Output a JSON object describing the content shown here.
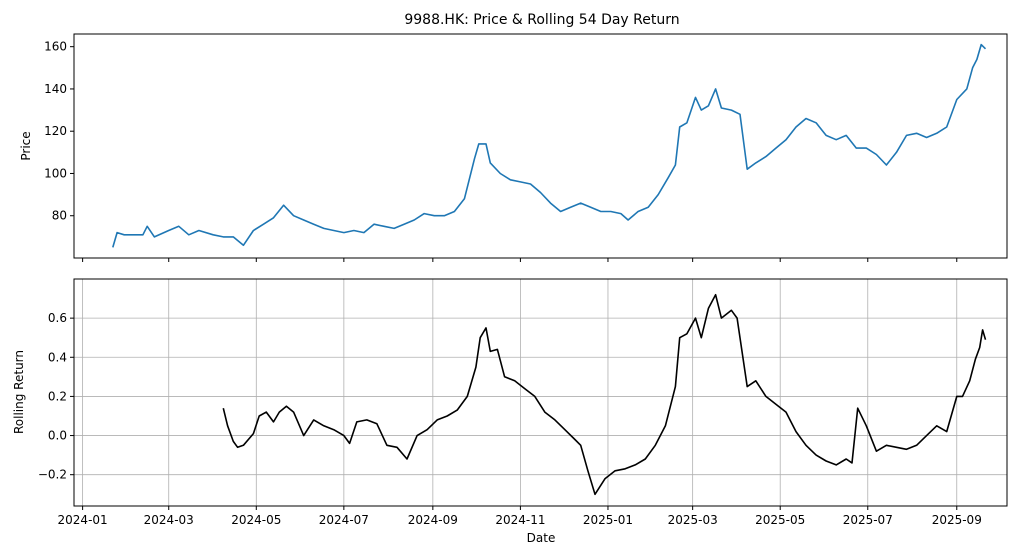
{
  "chart_data": [
    {
      "type": "line",
      "title": "9988.HK: Price & Rolling 54 Day Return",
      "xlabel": "",
      "ylabel": "Price",
      "ylim": [
        60,
        166
      ],
      "xlim": [
        "2023-12-26",
        "2025-10-06"
      ],
      "yticks": [
        80,
        100,
        120,
        140,
        160
      ],
      "grid": false,
      "series": [
        {
          "color": "#1f77b4",
          "points": [
            [
              "2024-01-22",
              65
            ],
            [
              "2024-01-25",
              72
            ],
            [
              "2024-01-30",
              71
            ],
            [
              "2024-02-05",
              71
            ],
            [
              "2024-02-12",
              71
            ],
            [
              "2024-02-15",
              75
            ],
            [
              "2024-02-20",
              70
            ],
            [
              "2024-03-01",
              73
            ],
            [
              "2024-03-08",
              75
            ],
            [
              "2024-03-15",
              71
            ],
            [
              "2024-03-22",
              73
            ],
            [
              "2024-04-01",
              71
            ],
            [
              "2024-04-08",
              70
            ],
            [
              "2024-04-15",
              70
            ],
            [
              "2024-04-22",
              66
            ],
            [
              "2024-04-29",
              73
            ],
            [
              "2024-05-06",
              76
            ],
            [
              "2024-05-13",
              79
            ],
            [
              "2024-05-20",
              85
            ],
            [
              "2024-05-27",
              80
            ],
            [
              "2024-06-03",
              78
            ],
            [
              "2024-06-10",
              76
            ],
            [
              "2024-06-17",
              74
            ],
            [
              "2024-06-24",
              73
            ],
            [
              "2024-07-01",
              72
            ],
            [
              "2024-07-08",
              73
            ],
            [
              "2024-07-15",
              72
            ],
            [
              "2024-07-22",
              76
            ],
            [
              "2024-07-29",
              75
            ],
            [
              "2024-08-05",
              74
            ],
            [
              "2024-08-12",
              76
            ],
            [
              "2024-08-19",
              78
            ],
            [
              "2024-08-26",
              81
            ],
            [
              "2024-09-02",
              80
            ],
            [
              "2024-09-09",
              80
            ],
            [
              "2024-09-16",
              82
            ],
            [
              "2024-09-23",
              88
            ],
            [
              "2024-09-30",
              107
            ],
            [
              "2024-10-03",
              114
            ],
            [
              "2024-10-08",
              114
            ],
            [
              "2024-10-11",
              105
            ],
            [
              "2024-10-18",
              100
            ],
            [
              "2024-10-25",
              97
            ],
            [
              "2024-11-01",
              96
            ],
            [
              "2024-11-08",
              95
            ],
            [
              "2024-11-15",
              91
            ],
            [
              "2024-11-22",
              86
            ],
            [
              "2024-11-29",
              82
            ],
            [
              "2024-12-06",
              84
            ],
            [
              "2024-12-13",
              86
            ],
            [
              "2024-12-20",
              84
            ],
            [
              "2024-12-27",
              82
            ],
            [
              "2025-01-03",
              82
            ],
            [
              "2025-01-10",
              81
            ],
            [
              "2025-01-15",
              78
            ],
            [
              "2025-01-22",
              82
            ],
            [
              "2025-01-29",
              84
            ],
            [
              "2025-02-05",
              90
            ],
            [
              "2025-02-12",
              98
            ],
            [
              "2025-02-17",
              104
            ],
            [
              "2025-02-20",
              122
            ],
            [
              "2025-02-25",
              124
            ],
            [
              "2025-03-03",
              136
            ],
            [
              "2025-03-07",
              130
            ],
            [
              "2025-03-12",
              132
            ],
            [
              "2025-03-17",
              140
            ],
            [
              "2025-03-21",
              131
            ],
            [
              "2025-03-28",
              130
            ],
            [
              "2025-04-03",
              128
            ],
            [
              "2025-04-08",
              102
            ],
            [
              "2025-04-14",
              105
            ],
            [
              "2025-04-21",
              108
            ],
            [
              "2025-04-28",
              112
            ],
            [
              "2025-05-05",
              116
            ],
            [
              "2025-05-12",
              122
            ],
            [
              "2025-05-19",
              126
            ],
            [
              "2025-05-26",
              124
            ],
            [
              "2025-06-02",
              118
            ],
            [
              "2025-06-09",
              116
            ],
            [
              "2025-06-16",
              118
            ],
            [
              "2025-06-23",
              112
            ],
            [
              "2025-06-30",
              112
            ],
            [
              "2025-07-07",
              109
            ],
            [
              "2025-07-14",
              104
            ],
            [
              "2025-07-21",
              110
            ],
            [
              "2025-07-28",
              118
            ],
            [
              "2025-08-04",
              119
            ],
            [
              "2025-08-11",
              117
            ],
            [
              "2025-08-18",
              119
            ],
            [
              "2025-08-25",
              122
            ],
            [
              "2025-09-01",
              135
            ],
            [
              "2025-09-08",
              140
            ],
            [
              "2025-09-12",
              150
            ],
            [
              "2025-09-15",
              154
            ],
            [
              "2025-09-18",
              161
            ],
            [
              "2025-09-21",
              159
            ]
          ]
        }
      ]
    },
    {
      "type": "line",
      "title": "",
      "xlabel": "Date",
      "ylabel": "Rolling Return",
      "ylim": [
        -0.36,
        0.8
      ],
      "xlim": [
        "2023-12-26",
        "2025-10-06"
      ],
      "yticks": [
        -0.2,
        0.0,
        0.2,
        0.4,
        0.6
      ],
      "ytick_labels": [
        "−0.2",
        "0.0",
        "0.2",
        "0.4",
        "0.6"
      ],
      "xtick_labels": [
        "2024-01",
        "2024-03",
        "2024-05",
        "2024-07",
        "2024-09",
        "2024-11",
        "2025-01",
        "2025-03",
        "2025-05",
        "2025-07",
        "2025-09"
      ],
      "grid": true,
      "series": [
        {
          "color": "#000000",
          "points": [
            [
              "2024-04-08",
              0.14
            ],
            [
              "2024-04-11",
              0.05
            ],
            [
              "2024-04-15",
              -0.03
            ],
            [
              "2024-04-18",
              -0.06
            ],
            [
              "2024-04-22",
              -0.05
            ],
            [
              "2024-04-29",
              0.01
            ],
            [
              "2024-05-03",
              0.1
            ],
            [
              "2024-05-08",
              0.12
            ],
            [
              "2024-05-13",
              0.07
            ],
            [
              "2024-05-17",
              0.12
            ],
            [
              "2024-05-22",
              0.15
            ],
            [
              "2024-05-27",
              0.12
            ],
            [
              "2024-06-03",
              0.0
            ],
            [
              "2024-06-10",
              0.08
            ],
            [
              "2024-06-17",
              0.05
            ],
            [
              "2024-06-24",
              0.03
            ],
            [
              "2024-07-01",
              0.0
            ],
            [
              "2024-07-05",
              -0.04
            ],
            [
              "2024-07-10",
              0.07
            ],
            [
              "2024-07-17",
              0.08
            ],
            [
              "2024-07-24",
              0.06
            ],
            [
              "2024-07-31",
              -0.05
            ],
            [
              "2024-08-07",
              -0.06
            ],
            [
              "2024-08-14",
              -0.12
            ],
            [
              "2024-08-21",
              0.0
            ],
            [
              "2024-08-28",
              0.03
            ],
            [
              "2024-09-04",
              0.08
            ],
            [
              "2024-09-11",
              0.1
            ],
            [
              "2024-09-18",
              0.13
            ],
            [
              "2024-09-25",
              0.2
            ],
            [
              "2024-10-01",
              0.35
            ],
            [
              "2024-10-04",
              0.5
            ],
            [
              "2024-10-08",
              0.55
            ],
            [
              "2024-10-11",
              0.43
            ],
            [
              "2024-10-16",
              0.44
            ],
            [
              "2024-10-21",
              0.3
            ],
            [
              "2024-10-28",
              0.28
            ],
            [
              "2024-11-04",
              0.24
            ],
            [
              "2024-11-11",
              0.2
            ],
            [
              "2024-11-18",
              0.12
            ],
            [
              "2024-11-25",
              0.08
            ],
            [
              "2024-12-02",
              0.03
            ],
            [
              "2024-12-09",
              -0.02
            ],
            [
              "2024-12-13",
              -0.05
            ],
            [
              "2024-12-18",
              -0.18
            ],
            [
              "2024-12-23",
              -0.3
            ],
            [
              "2024-12-30",
              -0.22
            ],
            [
              "2025-01-06",
              -0.18
            ],
            [
              "2025-01-13",
              -0.17
            ],
            [
              "2025-01-20",
              -0.15
            ],
            [
              "2025-01-27",
              -0.12
            ],
            [
              "2025-02-03",
              -0.05
            ],
            [
              "2025-02-10",
              0.05
            ],
            [
              "2025-02-17",
              0.25
            ],
            [
              "2025-02-20",
              0.5
            ],
            [
              "2025-02-25",
              0.52
            ],
            [
              "2025-03-03",
              0.6
            ],
            [
              "2025-03-07",
              0.5
            ],
            [
              "2025-03-12",
              0.65
            ],
            [
              "2025-03-17",
              0.72
            ],
            [
              "2025-03-21",
              0.6
            ],
            [
              "2025-03-28",
              0.64
            ],
            [
              "2025-04-01",
              0.6
            ],
            [
              "2025-04-08",
              0.25
            ],
            [
              "2025-04-14",
              0.28
            ],
            [
              "2025-04-21",
              0.2
            ],
            [
              "2025-04-28",
              0.16
            ],
            [
              "2025-05-05",
              0.12
            ],
            [
              "2025-05-12",
              0.02
            ],
            [
              "2025-05-19",
              -0.05
            ],
            [
              "2025-05-26",
              -0.1
            ],
            [
              "2025-06-02",
              -0.13
            ],
            [
              "2025-06-09",
              -0.15
            ],
            [
              "2025-06-16",
              -0.12
            ],
            [
              "2025-06-20",
              -0.14
            ],
            [
              "2025-06-24",
              0.14
            ],
            [
              "2025-06-30",
              0.05
            ],
            [
              "2025-07-07",
              -0.08
            ],
            [
              "2025-07-14",
              -0.05
            ],
            [
              "2025-07-21",
              -0.06
            ],
            [
              "2025-07-28",
              -0.07
            ],
            [
              "2025-08-04",
              -0.05
            ],
            [
              "2025-08-11",
              0.0
            ],
            [
              "2025-08-18",
              0.05
            ],
            [
              "2025-08-25",
              0.02
            ],
            [
              "2025-09-01",
              0.2
            ],
            [
              "2025-09-05",
              0.2
            ],
            [
              "2025-09-10",
              0.28
            ],
            [
              "2025-09-14",
              0.39
            ],
            [
              "2025-09-17",
              0.45
            ],
            [
              "2025-09-19",
              0.54
            ],
            [
              "2025-09-21",
              0.49
            ]
          ]
        }
      ]
    }
  ]
}
